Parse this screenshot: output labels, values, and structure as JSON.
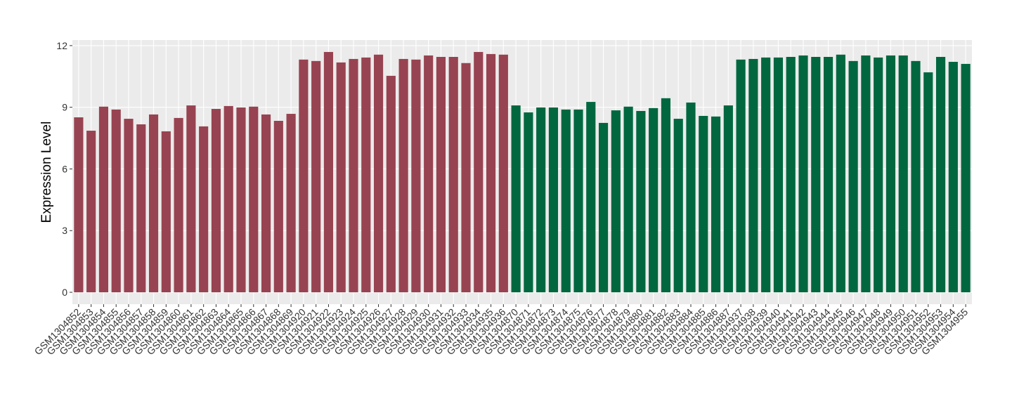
{
  "chart_data": {
    "type": "bar",
    "y_label": "Expression Level",
    "categories": [
      "GSM1304852",
      "GSM1304853",
      "GSM1304854",
      "GSM1304855",
      "GSM1304856",
      "GSM1304857",
      "GSM1304858",
      "GSM1304859",
      "GSM1304860",
      "GSM1304861",
      "GSM1304862",
      "GSM1304863",
      "GSM1304864",
      "GSM1304865",
      "GSM1304866",
      "GSM1304867",
      "GSM1304868",
      "GSM1304869",
      "GSM1304920",
      "GSM1304921",
      "GSM1304922",
      "GSM1304923",
      "GSM1304924",
      "GSM1304925",
      "GSM1304926",
      "GSM1304927",
      "GSM1304928",
      "GSM1304929",
      "GSM1304930",
      "GSM1304931",
      "GSM1304932",
      "GSM1304933",
      "GSM1304934",
      "GSM1304935",
      "GSM1304936",
      "GSM1304870",
      "GSM1304871",
      "GSM1304872",
      "GSM1304873",
      "GSM1304874",
      "GSM1304875",
      "GSM1304876",
      "GSM1304877",
      "GSM1304878",
      "GSM1304879",
      "GSM1304880",
      "GSM1304881",
      "GSM1304882",
      "GSM1304883",
      "GSM1304884",
      "GSM1304885",
      "GSM1304886",
      "GSM1304887",
      "GSM1304937",
      "GSM1304938",
      "GSM1304939",
      "GSM1304940",
      "GSM1304941",
      "GSM1304942",
      "GSM1304943",
      "GSM1304944",
      "GSM1304945",
      "GSM1304946",
      "GSM1304947",
      "GSM1304948",
      "GSM1304949",
      "GSM1304950",
      "GSM1304951",
      "GSM1304952",
      "GSM1304953",
      "GSM1304954",
      "GSM1304955"
    ],
    "series": [
      {
        "color": "#984351",
        "values": [
          8.51,
          7.86,
          9.03,
          8.89,
          8.44,
          8.17,
          8.65,
          7.83,
          8.48,
          9.09,
          8.07,
          8.92,
          9.06,
          8.99,
          9.03,
          8.65,
          8.34,
          8.68,
          11.32,
          11.25,
          11.69,
          11.18,
          11.35,
          11.42,
          11.56,
          10.53,
          11.35,
          11.32,
          11.52,
          11.45,
          11.45,
          11.15,
          11.69,
          11.59,
          11.56,
          null,
          null,
          null,
          null,
          null,
          null,
          null,
          null,
          null,
          null,
          null,
          null,
          null,
          null,
          null,
          null,
          null,
          null,
          null,
          null,
          null,
          null,
          null,
          null,
          null,
          null,
          null,
          null,
          null,
          null,
          null,
          null,
          null,
          null,
          null,
          null,
          null
        ]
      },
      {
        "color": "#00673f",
        "values": [
          null,
          null,
          null,
          null,
          null,
          null,
          null,
          null,
          null,
          null,
          null,
          null,
          null,
          null,
          null,
          null,
          null,
          null,
          null,
          null,
          null,
          null,
          null,
          null,
          null,
          null,
          null,
          null,
          null,
          null,
          null,
          null,
          null,
          null,
          null,
          9.09,
          8.75,
          8.99,
          8.99,
          8.89,
          8.89,
          9.26,
          8.24,
          8.85,
          9.03,
          8.82,
          8.96,
          9.44,
          8.44,
          9.23,
          8.58,
          8.55,
          9.09,
          11.32,
          11.35,
          11.42,
          11.42,
          11.45,
          11.52,
          11.45,
          11.45,
          11.56,
          11.25,
          11.52,
          11.42,
          11.52,
          11.52,
          11.25,
          10.7,
          11.45,
          11.21,
          11.11
        ]
      }
    ],
    "ylim": [
      -0.58,
      12.27
    ],
    "yticks": [
      0,
      3,
      6,
      9,
      12
    ],
    "grid": true
  }
}
